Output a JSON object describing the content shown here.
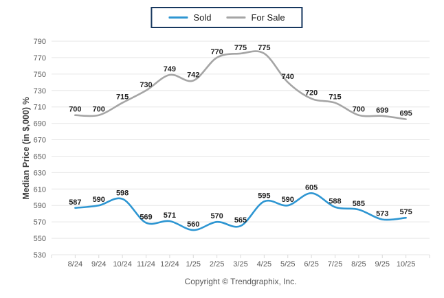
{
  "legend": {
    "items": [
      {
        "label": "Sold",
        "color": "#2E96D2"
      },
      {
        "label": "For Sale",
        "color": "#A5A5A5"
      }
    ],
    "border_color": "#17375E"
  },
  "chart_data": {
    "type": "line",
    "categories": [
      "8/24",
      "9/24",
      "10/24",
      "11/24",
      "12/24",
      "1/25",
      "2/25",
      "3/25",
      "4/25",
      "5/25",
      "6/25",
      "7/25",
      "8/25",
      "9/25",
      "10/25"
    ],
    "series": [
      {
        "name": "Sold",
        "color": "#2E96D2",
        "values": [
          587,
          590,
          598,
          569,
          571,
          560,
          570,
          565,
          595,
          590,
          605,
          588,
          585,
          573,
          575
        ]
      },
      {
        "name": "For Sale",
        "color": "#A5A5A5",
        "values": [
          700,
          700,
          715,
          730,
          749,
          742,
          770,
          775,
          775,
          740,
          720,
          715,
          700,
          699,
          695
        ]
      }
    ],
    "title": "",
    "xlabel": "",
    "ylabel": "Median Price (in $,000) %",
    "ylim": [
      530,
      790
    ],
    "ytick_step": 20,
    "grid": true,
    "legend_position": "top",
    "data_labels": true
  },
  "styles": {
    "grid_color": "#E6E6E6",
    "tick_color": "#D9D9D9",
    "axis_text_color": "#595959",
    "data_label_color": "#1F1F1F",
    "background": "#FFFFFF"
  },
  "footer": {
    "text": "Copyright © Trendgraphix, Inc."
  }
}
